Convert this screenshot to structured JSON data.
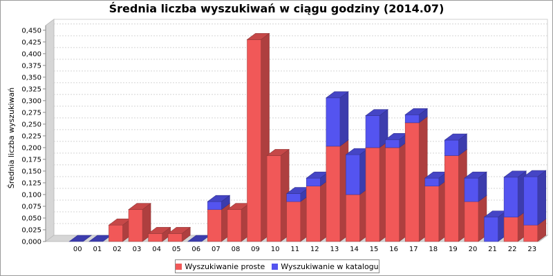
{
  "chart_data": {
    "type": "bar",
    "stacked": true,
    "three_d": true,
    "title": "Średnia liczba wyszukiwań w ciągu godziny (2014.07)",
    "xlabel": "",
    "ylabel": "Średnia liczba wyszukiwań",
    "categories": [
      "00",
      "01",
      "02",
      "03",
      "04",
      "05",
      "06",
      "07",
      "08",
      "09",
      "10",
      "11",
      "12",
      "13",
      "14",
      "15",
      "16",
      "17",
      "18",
      "19",
      "20",
      "21",
      "22",
      "23"
    ],
    "series": [
      {
        "name": "Wyszukiwanie proste",
        "color": "#f15858",
        "values": [
          0,
          0,
          0.035,
          0.068,
          0.017,
          0.017,
          0,
          0.068,
          0.068,
          0.43,
          0.183,
          0.085,
          0.118,
          0.203,
          0.1,
          0.2,
          0.2,
          0.253,
          0.118,
          0.183,
          0.085,
          0,
          0.052,
          0.035
        ]
      },
      {
        "name": "Wyszukiwanie w katalogu",
        "color": "#5454f0",
        "values": [
          0,
          0,
          0,
          0,
          0,
          0,
          0,
          0.017,
          0,
          0,
          0,
          0.017,
          0.017,
          0.103,
          0.085,
          0.068,
          0.017,
          0.017,
          0.017,
          0.033,
          0.05,
          0.052,
          0.085,
          0.103
        ]
      }
    ],
    "yticks": [
      "0,000",
      "0,025",
      "0,050",
      "0,075",
      "0,100",
      "0,125",
      "0,150",
      "0,175",
      "0,200",
      "0,225",
      "0,250",
      "0,275",
      "0,300",
      "0,325",
      "0,350",
      "0,375",
      "0,400",
      "0,425",
      "0,450"
    ],
    "ylim": [
      0,
      0.46
    ],
    "grid": true,
    "legend_position": "bottom"
  }
}
